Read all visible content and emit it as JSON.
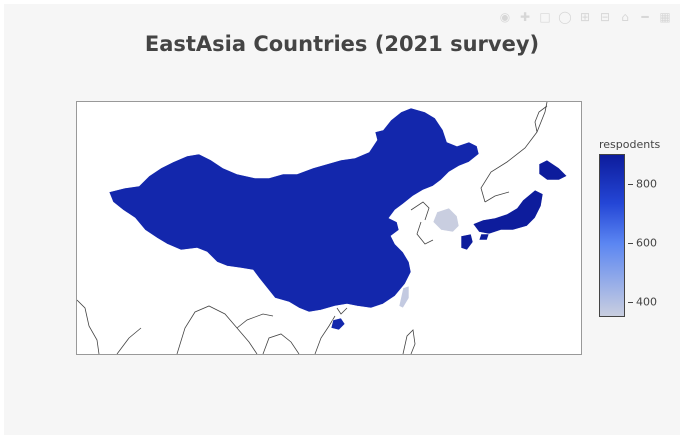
{
  "chart_data": {
    "type": "choropleth",
    "title": "EastAsia Countries (2021 survey)",
    "colorbar_title": "respodents",
    "colorbar_ticks": [
      "800",
      "600",
      "400"
    ],
    "colorbar_range": [
      350,
      900
    ],
    "colorscale": [
      "#c9cee0",
      "#5b86f2",
      "#2446d6",
      "#0d1c9c"
    ],
    "regions": [
      {
        "name": "China",
        "value": 850
      },
      {
        "name": "Japan",
        "value": 900
      },
      {
        "name": "South Korea",
        "value": 350
      },
      {
        "name": "Taiwan",
        "value": 360
      }
    ]
  },
  "modebar": {
    "icons": [
      "camera-icon",
      "zoom-icon",
      "pan-icon",
      "select-box-icon",
      "lasso-icon",
      "zoom-in-icon",
      "zoom-out-icon",
      "autoscale-icon",
      "reset-icon",
      "spike-icon",
      "plotly-logo-icon"
    ]
  }
}
